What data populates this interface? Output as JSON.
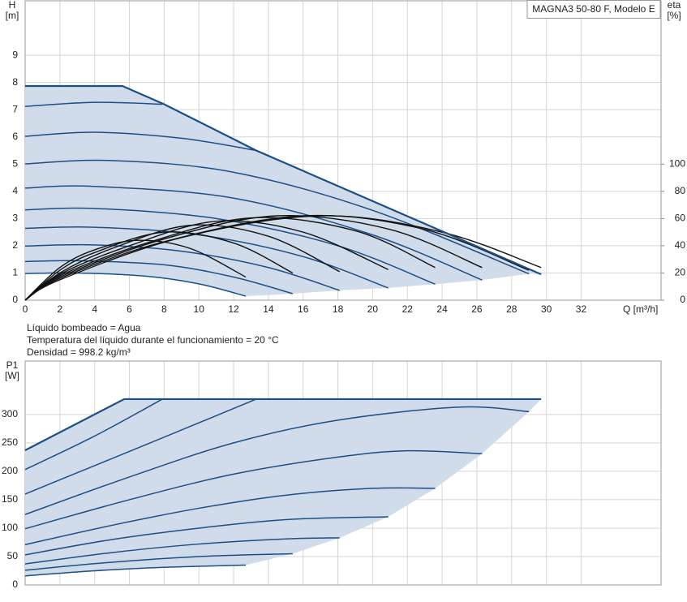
{
  "chart_data": [
    {
      "type": "line",
      "title": "MAGNA3 50-80 F, Modelo E",
      "ylabel": [
        "H",
        "[m]"
      ],
      "y2label": [
        "eta",
        "[%]"
      ],
      "xlabel": "Q [m³/h]",
      "xlim": [
        0,
        36.6
      ],
      "xticks": [
        0,
        2,
        4,
        6,
        8,
        10,
        12,
        14,
        16,
        18,
        20,
        22,
        24,
        26,
        28,
        30,
        32
      ],
      "ylim": [
        0,
        11
      ],
      "yticks": [
        0,
        1,
        2,
        3,
        4,
        5,
        6,
        7,
        8,
        9
      ],
      "y2lim": [
        0,
        220
      ],
      "y2ticks": [
        0,
        20,
        40,
        60,
        80,
        100
      ],
      "grid": true,
      "fill": "#d0dce9",
      "show_xtick_labels": true,
      "series": [
        {
          "color": "#1b4f86",
          "smooth": false,
          "width": 2.2,
          "x": [
            0,
            5.6,
            8,
            13.3,
            29.7
          ],
          "values": [
            7.87,
            7.87,
            7.2,
            5.5,
            0.95
          ]
        },
        {
          "color": "#1b4f86",
          "smooth": true,
          "width": 1.5,
          "x": [
            0,
            4,
            7.9
          ],
          "values": [
            7.12,
            7.27,
            7.2
          ]
        },
        {
          "color": "#1b4f86",
          "smooth": true,
          "width": 1.5,
          "x": [
            0,
            4,
            9,
            13.3
          ],
          "values": [
            6.02,
            6.17,
            5.95,
            5.5
          ]
        },
        {
          "color": "#1b4f86",
          "smooth": true,
          "width": 1.5,
          "x": [
            0,
            5,
            12,
            20,
            29
          ],
          "values": [
            5.01,
            5.13,
            4.7,
            3.3,
            0.97
          ]
        },
        {
          "color": "#1b4f86",
          "smooth": true,
          "width": 1.5,
          "x": [
            0,
            4,
            12,
            20,
            26.3
          ],
          "values": [
            4.12,
            4.18,
            3.75,
            2.4,
            0.74
          ]
        },
        {
          "color": "#1b4f86",
          "smooth": true,
          "width": 1.5,
          "x": [
            0,
            4,
            11,
            18,
            23.6
          ],
          "values": [
            3.32,
            3.37,
            3.0,
            2.0,
            0.59
          ]
        },
        {
          "color": "#1b4f86",
          "smooth": true,
          "width": 1.5,
          "x": [
            0,
            4,
            10,
            16,
            20.9
          ],
          "values": [
            2.64,
            2.68,
            2.4,
            1.6,
            0.45
          ]
        },
        {
          "color": "#1b4f86",
          "smooth": true,
          "width": 1.5,
          "x": [
            0,
            4,
            9,
            14,
            18.1
          ],
          "values": [
            1.99,
            2.03,
            1.8,
            1.2,
            0.36
          ]
        },
        {
          "color": "#1b4f86",
          "smooth": true,
          "width": 1.5,
          "x": [
            0,
            3,
            8,
            12,
            15.4
          ],
          "values": [
            1.42,
            1.45,
            1.3,
            0.85,
            0.24
          ]
        },
        {
          "color": "#1b4f86",
          "smooth": true,
          "width": 1.5,
          "x": [
            0,
            3,
            7,
            10,
            12.7
          ],
          "values": [
            0.98,
            1.0,
            0.88,
            0.6,
            0.15
          ]
        },
        {
          "color": "#111111",
          "smooth": true,
          "width": 1.4,
          "axis": "y2",
          "x": [
            0,
            2,
            4,
            6.5,
            9.5,
            12.7
          ],
          "values": [
            0,
            24,
            37,
            44,
            38,
            17
          ]
        },
        {
          "color": "#111111",
          "smooth": true,
          "width": 1.4,
          "axis": "y2",
          "x": [
            0,
            2,
            4,
            8,
            12,
            15.4
          ],
          "values": [
            0,
            22,
            35,
            50,
            42,
            20
          ]
        },
        {
          "color": "#111111",
          "smooth": true,
          "width": 1.4,
          "axis": "y2",
          "x": [
            0,
            2,
            5,
            9.5,
            14,
            18.1
          ],
          "values": [
            0,
            20,
            38,
            55,
            47,
            21
          ]
        },
        {
          "color": "#111111",
          "smooth": true,
          "width": 1.4,
          "axis": "y2",
          "x": [
            0,
            2,
            6,
            11,
            16,
            20.9
          ],
          "values": [
            0,
            19,
            40,
            58,
            50,
            22.5
          ]
        },
        {
          "color": "#111111",
          "smooth": true,
          "width": 1.4,
          "axis": "y2",
          "x": [
            0,
            2,
            7,
            13,
            19,
            23.6
          ],
          "values": [
            0,
            18,
            42,
            60.5,
            51,
            24
          ]
        },
        {
          "color": "#111111",
          "smooth": true,
          "width": 1.4,
          "axis": "y2",
          "x": [
            0,
            2,
            8,
            14.5,
            21,
            26.3
          ],
          "values": [
            0,
            17,
            45,
            62,
            52,
            24
          ]
        },
        {
          "color": "#111111",
          "smooth": true,
          "width": 1.4,
          "axis": "y2",
          "x": [
            0,
            2,
            8,
            16,
            23,
            29
          ],
          "values": [
            0,
            16,
            43,
            62,
            52,
            22
          ]
        },
        {
          "color": "#111111",
          "smooth": true,
          "width": 1.4,
          "axis": "y2",
          "x": [
            0,
            2,
            9,
            17,
            24,
            29.7
          ],
          "values": [
            0,
            15,
            46,
            62,
            50,
            24
          ]
        }
      ]
    },
    {
      "type": "line",
      "ylabel": [
        "P1",
        "[W]"
      ],
      "xlim": [
        0,
        36.6
      ],
      "xticks": [
        0,
        2,
        4,
        6,
        8,
        10,
        12,
        14,
        16,
        18,
        20,
        22,
        24,
        26,
        28,
        30,
        32
      ],
      "ylim": [
        0,
        394
      ],
      "yticks": [
        0,
        50,
        100,
        150,
        200,
        250,
        300
      ],
      "grid": true,
      "fill": "#d0dce9",
      "show_xtick_labels": false,
      "series": [
        {
          "color": "#1b4f86",
          "smooth": false,
          "width": 2.2,
          "x": [
            0,
            5.7,
            29.7
          ],
          "values": [
            237,
            327,
            327
          ]
        },
        {
          "color": "#1b4f86",
          "smooth": true,
          "width": 1.5,
          "x": [
            0,
            4,
            7.9
          ],
          "values": [
            203,
            262,
            327
          ]
        },
        {
          "color": "#1b4f86",
          "smooth": true,
          "width": 1.5,
          "x": [
            0,
            4,
            8,
            13.3
          ],
          "values": [
            160,
            210,
            260,
            327
          ]
        },
        {
          "color": "#1b4f86",
          "smooth": true,
          "width": 1.5,
          "x": [
            0,
            6,
            12,
            18,
            25,
            29
          ],
          "values": [
            124,
            190,
            250,
            290,
            313,
            305
          ]
        },
        {
          "color": "#1b4f86",
          "smooth": true,
          "width": 1.5,
          "x": [
            0,
            6,
            12,
            18,
            22,
            26.3
          ],
          "values": [
            99,
            150,
            195,
            225,
            236,
            231
          ]
        },
        {
          "color": "#1b4f86",
          "smooth": true,
          "width": 1.5,
          "x": [
            0,
            5,
            10,
            15,
            20,
            23.6
          ],
          "values": [
            71,
            105,
            135,
            158,
            170,
            170
          ]
        },
        {
          "color": "#1b4f86",
          "smooth": true,
          "width": 1.5,
          "x": [
            0,
            5,
            10,
            15,
            20.9
          ],
          "values": [
            53,
            80,
            100,
            115,
            120
          ]
        },
        {
          "color": "#1b4f86",
          "smooth": true,
          "width": 1.5,
          "x": [
            0,
            5,
            10,
            15,
            18.1
          ],
          "values": [
            37,
            57,
            72,
            81,
            83
          ]
        },
        {
          "color": "#1b4f86",
          "smooth": true,
          "width": 1.5,
          "x": [
            0,
            5,
            10,
            15.4
          ],
          "values": [
            26,
            40,
            50,
            55
          ]
        },
        {
          "color": "#1b4f86",
          "smooth": true,
          "width": 1.5,
          "x": [
            0,
            4,
            8,
            12.7
          ],
          "values": [
            16,
            25,
            31,
            35
          ]
        }
      ]
    }
  ],
  "notes": [
    "Líquido bombeado = Agua",
    "Temperatura del líquido durante el funcionamiento = 20 °C",
    "Densidad = 998.2 kg/m³"
  ]
}
